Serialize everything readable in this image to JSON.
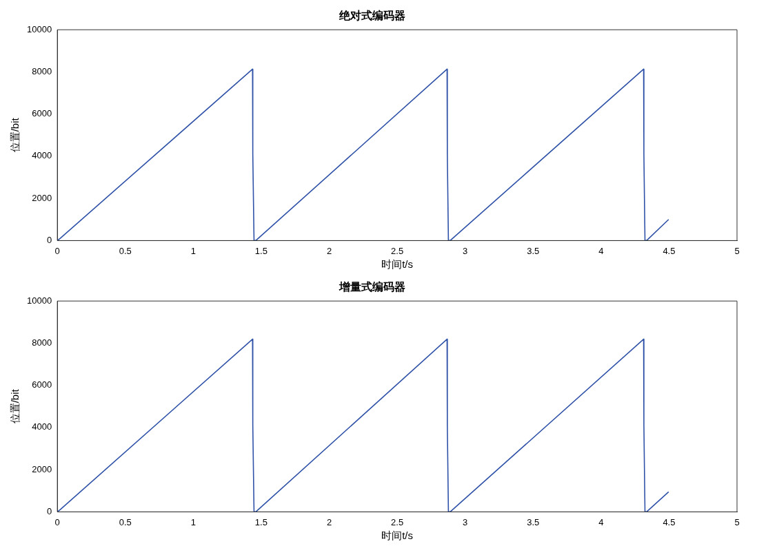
{
  "chart_data": [
    {
      "type": "line",
      "title": "绝对式编码器",
      "xlabel": "时间t/s",
      "ylabel": "位置/bit",
      "xlim": [
        0,
        5
      ],
      "ylim": [
        0,
        10000
      ],
      "xticks": [
        0,
        0.5,
        1,
        1.5,
        2,
        2.5,
        3,
        3.5,
        4,
        4.5,
        5
      ],
      "yticks": [
        0,
        2000,
        4000,
        6000,
        8000,
        10000
      ],
      "grid": false,
      "legend": false,
      "marker": "none",
      "line_style": "solid",
      "series": [
        {
          "color": "#2f52a8",
          "x": [
            0,
            0.02,
            1.436,
            1.438,
            1.447,
            1.46,
            2.867,
            2.869,
            2.877,
            2.89,
            4.313,
            4.315,
            4.323,
            4.335,
            4.497
          ],
          "values": [
            0,
            100,
            8130,
            4100,
            0,
            0,
            8130,
            4100,
            0,
            0,
            8130,
            4100,
            0,
            0,
            1000
          ]
        }
      ]
    },
    {
      "type": "line",
      "title": "增量式编码器",
      "xlabel": "时间t/s",
      "ylabel": "位置/bit",
      "xlim": [
        0,
        5
      ],
      "ylim": [
        0,
        10000
      ],
      "xticks": [
        0,
        0.5,
        1,
        1.5,
        2,
        2.5,
        3,
        3.5,
        4,
        4.5,
        5
      ],
      "yticks": [
        0,
        2000,
        4000,
        6000,
        8000,
        10000
      ],
      "grid": false,
      "legend": false,
      "marker": "none",
      "line_style": "solid",
      "series": [
        {
          "color": "#2f52a8",
          "x": [
            0,
            0.02,
            1.436,
            1.438,
            1.447,
            1.46,
            2.867,
            2.869,
            2.877,
            2.89,
            4.313,
            4.315,
            4.323,
            4.335,
            4.497
          ],
          "values": [
            0,
            100,
            8190,
            4100,
            0,
            0,
            8190,
            4100,
            0,
            0,
            8190,
            4100,
            0,
            0,
            950
          ]
        }
      ]
    }
  ]
}
